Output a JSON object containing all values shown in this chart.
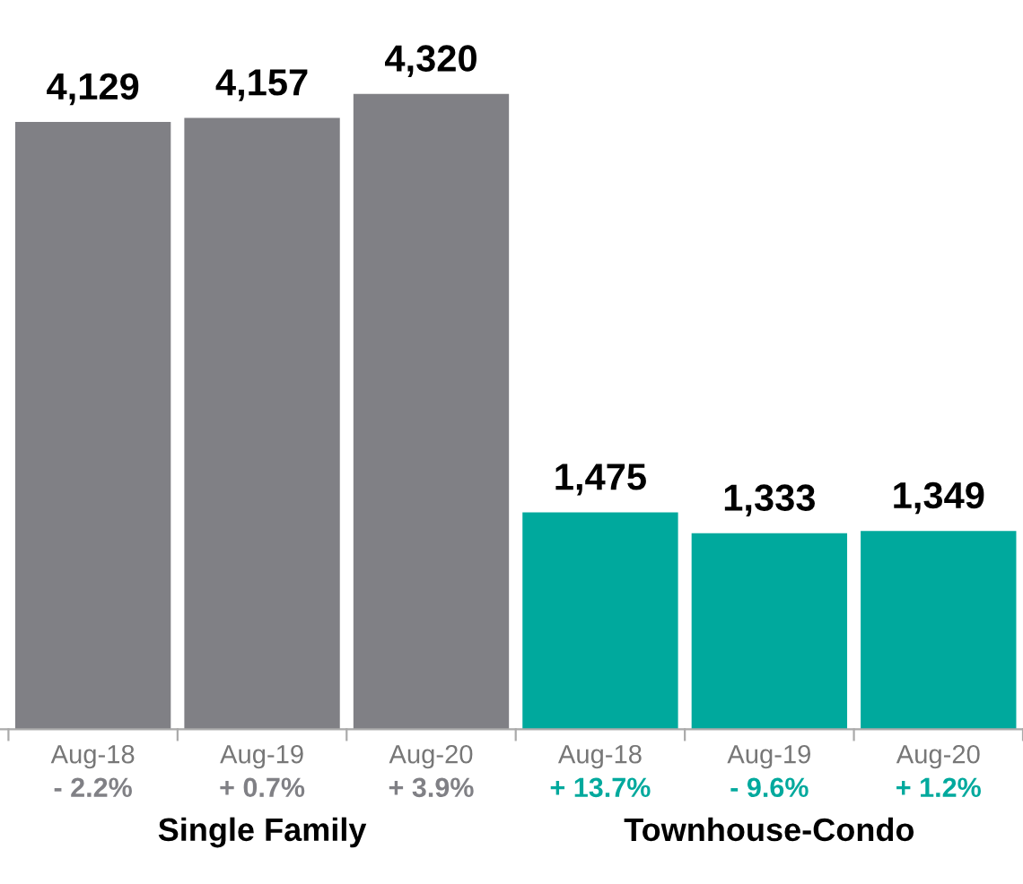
{
  "chart_data": {
    "type": "bar",
    "categories": [
      "Aug-18",
      "Aug-19",
      "Aug-20",
      "Aug-18",
      "Aug-19",
      "Aug-20"
    ],
    "series": [
      {
        "name": "Single Family",
        "color": "#808085",
        "values": [
          4129,
          4157,
          4320,
          null,
          null,
          null
        ],
        "value_labels": [
          "4,129",
          "4,157",
          "4,320",
          null,
          null,
          null
        ]
      },
      {
        "name": "Townhouse-Condo",
        "color": "#00a99d",
        "values": [
          null,
          null,
          null,
          1475,
          1333,
          1349
        ],
        "value_labels": [
          null,
          null,
          null,
          "1,475",
          "1,333",
          "1,349"
        ]
      }
    ],
    "annotations": [
      "- 2.2%",
      "+ 0.7%",
      "+ 3.9%",
      "+ 13.7%",
      "- 9.6%",
      "+ 1.2%"
    ],
    "grid": false,
    "legend": false
  }
}
